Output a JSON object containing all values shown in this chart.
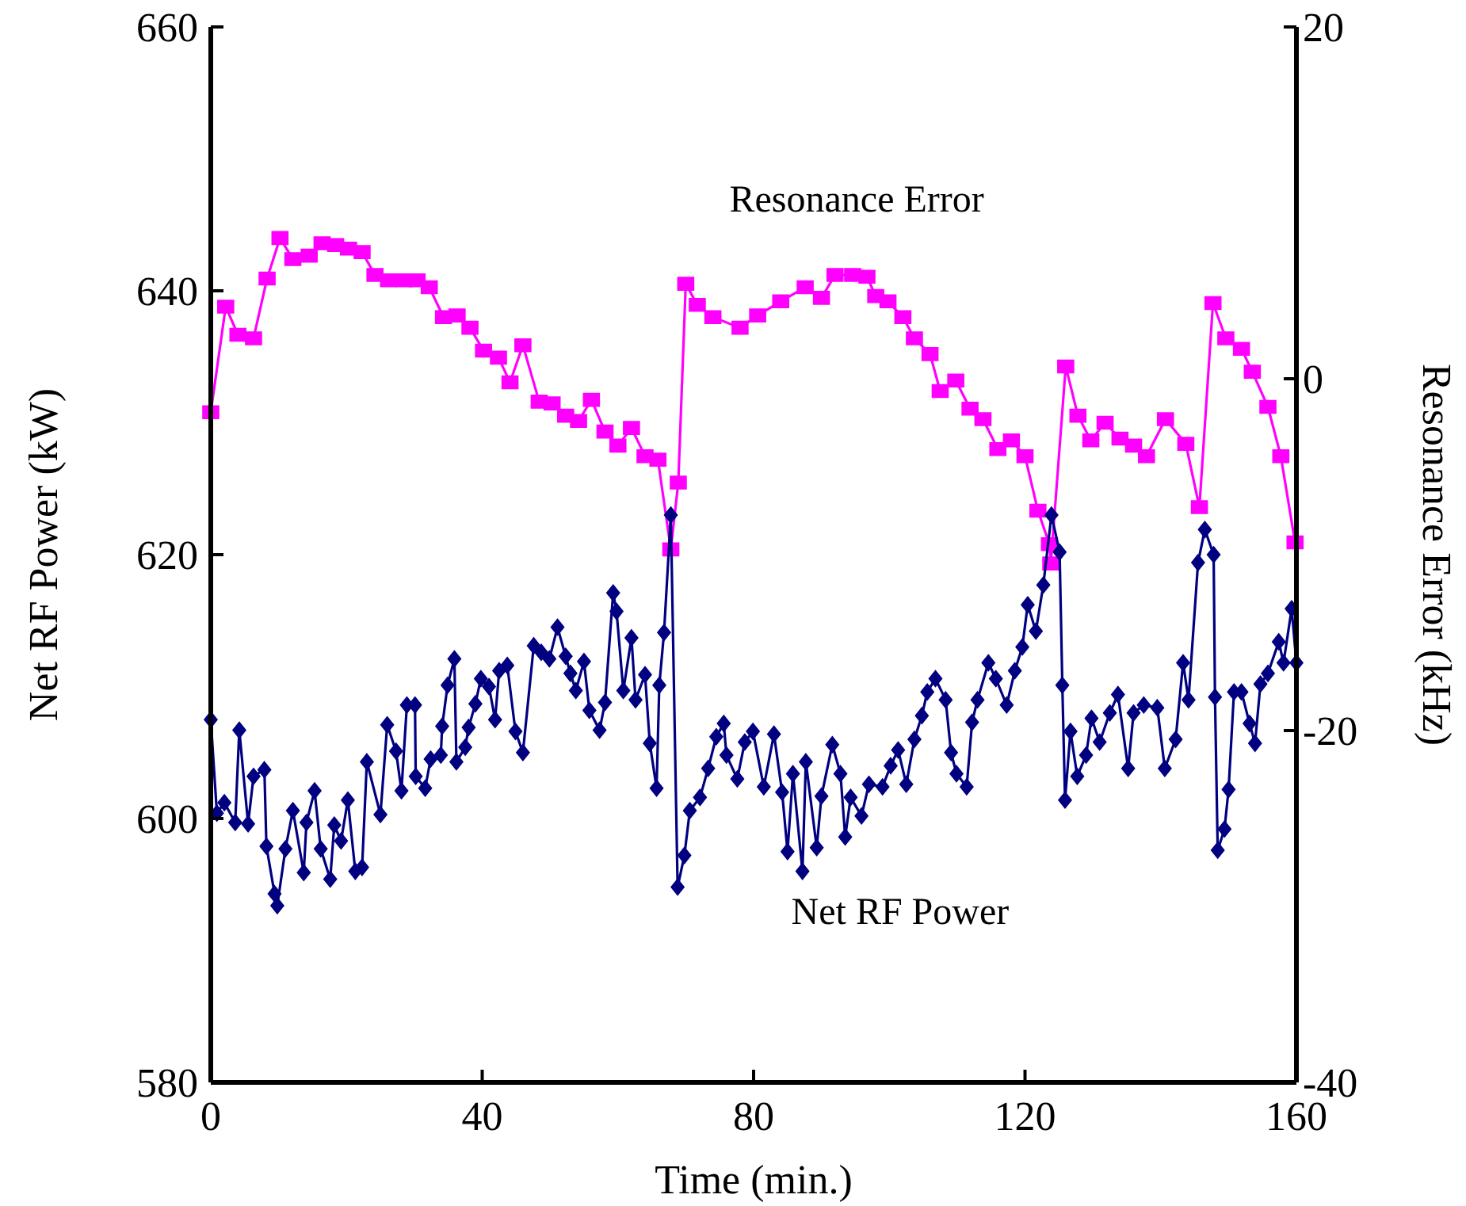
{
  "chart_data": {
    "type": "line",
    "xlabel": "Time (min.)",
    "ylabel": "Net RF Power (kW)",
    "y2label": "Resonance Error (kHz)",
    "xlim": [
      0,
      160
    ],
    "xticks": [
      0,
      40,
      80,
      120,
      160
    ],
    "ylim": [
      580,
      660
    ],
    "yticks": [
      580,
      600,
      620,
      640,
      660
    ],
    "y2lim": [
      -40,
      20
    ],
    "y2ticks": [
      -40,
      -20,
      0,
      20
    ],
    "line_style": "solid",
    "series": [
      {
        "name": "Resonance Error",
        "color": "#ff00ff",
        "axis": "y2",
        "marker": "square",
        "x": [
          0,
          2.2,
          4,
          6.3,
          8.3,
          10.2,
          12.1,
          14.5,
          16.4,
          18.4,
          20.3,
          22.3,
          24.2,
          26.2,
          28.5,
          30.4,
          32.2,
          34.3,
          36.3,
          38.2,
          40.2,
          42.4,
          44.1,
          46,
          48.4,
          50.3,
          52.3,
          54.2,
          56.1,
          58.1,
          60,
          62,
          64,
          65.9,
          67.8,
          68.9,
          70,
          71.7,
          74,
          78,
          80.6,
          84,
          87.6,
          90,
          92,
          94.6,
          96.7,
          98,
          99.8,
          102,
          103.7,
          106,
          107.5,
          109.8,
          111.9,
          113.8,
          116,
          118,
          120,
          121.9,
          123.6,
          123.8,
          126,
          127.8,
          129.7,
          131.8,
          134,
          136,
          137.9,
          140.7,
          143.7,
          145.7,
          147.7,
          149.6,
          151.9,
          153.5,
          155.8,
          157.7,
          159.8
        ],
        "values": [
          -1.9,
          4.1,
          2.5,
          2.3,
          5.7,
          8,
          6.8,
          7,
          7.7,
          7.6,
          7.4,
          7.2,
          5.9,
          5.6,
          5.6,
          5.6,
          5.2,
          3.5,
          3.6,
          2.9,
          1.6,
          1.2,
          -0.2,
          1.9,
          -1.3,
          -1.4,
          -2.1,
          -2.4,
          -1.2,
          -3,
          -3.8,
          -2.8,
          -4.4,
          -4.6,
          -9.7,
          -5.9,
          5.4,
          4.2,
          3.5,
          2.9,
          3.6,
          4.4,
          5.2,
          4.6,
          5.9,
          5.9,
          5.8,
          4.7,
          4.4,
          3.5,
          2.3,
          1.4,
          -0.7,
          -0.1,
          -1.7,
          -2.3,
          -4,
          -3.5,
          -4.4,
          -7.5,
          -9.4,
          -10.5,
          0.7,
          -2.1,
          -3.5,
          -2.5,
          -3.4,
          -3.8,
          -4.4,
          -2.3,
          -3.7,
          -7.3,
          4.3,
          2.3,
          1.7,
          0.4,
          -1.6,
          -4.4,
          -9.3
        ]
      },
      {
        "name": "Net RF Power",
        "color": "#000080",
        "marker": "diamond",
        "x": [
          0,
          0.9,
          2,
          3.6,
          4.2,
          5.5,
          6.3,
          7.9,
          8.2,
          9.4,
          9.8,
          11,
          12.1,
          13.7,
          14.1,
          15.3,
          16.2,
          17.6,
          18.2,
          19.2,
          20.2,
          21.3,
          22.3,
          23,
          25,
          26,
          27.3,
          28.1,
          28.9,
          30.1,
          30.2,
          31.6,
          32.4,
          33.9,
          34.1,
          34.9,
          35.9,
          36.2,
          37.5,
          38,
          39,
          39.8,
          41,
          41.9,
          42.5,
          43.7,
          44.9,
          46,
          47.6,
          48.7,
          49.9,
          51.1,
          52.3,
          53,
          53.8,
          55,
          55.8,
          57.3,
          58.1,
          59.3,
          59.8,
          60.8,
          62,
          62.6,
          64,
          64.7,
          65.7,
          66.1,
          66.8,
          67.8,
          68.8,
          69.8,
          70.6,
          72.1,
          73.3,
          74.5,
          75.6,
          76,
          77.6,
          78.7,
          79.9,
          81.5,
          83,
          84.2,
          85,
          85.8,
          87.2,
          87.7,
          89.3,
          90,
          91.6,
          92.8,
          93.5,
          94.3,
          95.9,
          97,
          99,
          100.2,
          101.3,
          102.5,
          103.7,
          104.8,
          105.6,
          106.8,
          108.3,
          109.1,
          109.9,
          111.4,
          112.2,
          113,
          114.6,
          115.7,
          117.3,
          118.5,
          119.6,
          120.4,
          121.6,
          122.7,
          123.9,
          125.1,
          125.5,
          125.9,
          126.7,
          127.7,
          129,
          129.8,
          131,
          132.5,
          133.7,
          135.2,
          136,
          137.5,
          139.5,
          140.6,
          142.2,
          143.3,
          144.1,
          145.5,
          146.5,
          147.8,
          148,
          148.4,
          149.4,
          150,
          150.8,
          151.9,
          153.1,
          153.9,
          154.7,
          155.8,
          157.4,
          158.1,
          159.3,
          160
        ],
        "values": [
          607.5,
          600.4,
          601.2,
          599.7,
          606.7,
          599.6,
          603.2,
          603.7,
          597.9,
          594.3,
          593.4,
          597.7,
          600.6,
          595.9,
          599.7,
          602.1,
          597.7,
          595.4,
          599.5,
          598.3,
          601.4,
          596,
          596.3,
          604.3,
          600.3,
          607.1,
          605.1,
          602.1,
          608.6,
          608.6,
          603.2,
          602.3,
          604.5,
          604.8,
          607,
          610.1,
          612.1,
          604.3,
          605.4,
          606.9,
          608.7,
          610.6,
          610,
          607.5,
          611.2,
          611.6,
          606.6,
          605,
          613.1,
          612.6,
          612.1,
          614.5,
          612.3,
          611,
          609.7,
          611.9,
          608.2,
          606.7,
          608.8,
          617.1,
          615.7,
          609.7,
          613.7,
          609,
          610.9,
          605.7,
          602.3,
          610.1,
          614.1,
          623,
          594.8,
          597.2,
          600.6,
          601.6,
          603.8,
          606.2,
          607.2,
          604.8,
          603,
          605.8,
          606.6,
          602.4,
          606.4,
          602,
          597.5,
          603.4,
          596,
          604.3,
          597.8,
          601.7,
          605.6,
          603.4,
          598.6,
          601.6,
          600.2,
          602.6,
          602.4,
          604,
          605.2,
          602.6,
          606,
          607.8,
          609.6,
          610.6,
          609,
          605,
          603.4,
          602.4,
          607.3,
          609,
          611.8,
          610.6,
          608.6,
          611.2,
          613,
          616.2,
          614.2,
          617.7,
          623,
          620.2,
          610.1,
          601.4,
          606.6,
          603.2,
          604.8,
          607.6,
          605.8,
          608,
          609.4,
          603.8,
          608,
          608.6,
          608.4,
          603.8,
          606,
          611.8,
          609,
          619.4,
          621.9,
          620,
          609.2,
          597.6,
          599.2,
          602.2,
          609.6,
          609.6,
          607.2,
          605.7,
          610.2,
          611,
          613.4,
          611.8,
          615.9,
          611.8
        ]
      }
    ]
  }
}
